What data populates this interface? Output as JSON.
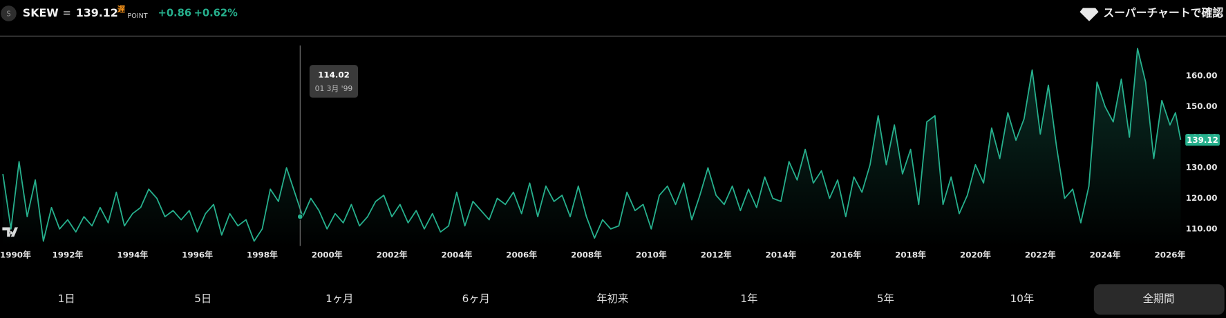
{
  "header": {
    "icon": "S",
    "symbol": "SKEW",
    "separator": "=",
    "price": 139.12,
    "delay": "遅",
    "unit": "POINT",
    "change": "+0.86",
    "change_pct": "+0.62%",
    "link": "スーパーチャートで確認"
  },
  "ranges": [
    "1日",
    "5日",
    "1ヶ月",
    "6ヶ月",
    "年初来",
    "1年",
    "5年",
    "10年",
    "全期間"
  ],
  "chart_data": {
    "type": "line",
    "color": "#26b08d",
    "x": [
      1990,
      1990.25,
      1990.5,
      1990.75,
      1991,
      1991.25,
      1991.5,
      1991.75,
      1992,
      1992.25,
      1992.5,
      1992.75,
      1993,
      1993.25,
      1993.5,
      1993.75,
      1994,
      1994.25,
      1994.5,
      1994.75,
      1995,
      1995.25,
      1995.5,
      1995.75,
      1996,
      1996.25,
      1996.5,
      1996.75,
      1997,
      1997.25,
      1997.5,
      1997.75,
      1998,
      1998.25,
      1998.5,
      1998.75,
      1999,
      1999.25,
      1999.5,
      1999.75,
      2000,
      2000.25,
      2000.5,
      2000.75,
      2001,
      2001.25,
      2001.5,
      2001.75,
      2002,
      2002.25,
      2002.5,
      2002.75,
      2003,
      2003.25,
      2003.5,
      2003.75,
      2004,
      2004.25,
      2004.5,
      2004.75,
      2005,
      2005.25,
      2005.5,
      2005.75,
      2006,
      2006.25,
      2006.5,
      2006.75,
      2007,
      2007.25,
      2007.5,
      2007.75,
      2008,
      2008.25,
      2008.5,
      2008.75,
      2009,
      2009.25,
      2009.5,
      2009.75,
      2010,
      2010.25,
      2010.5,
      2010.75,
      2011,
      2011.25,
      2011.5,
      2011.75,
      2012,
      2012.25,
      2012.5,
      2012.75,
      2013,
      2013.25,
      2013.5,
      2013.75,
      2014,
      2014.25,
      2014.5,
      2014.75,
      2015,
      2015.25,
      2015.5,
      2015.75,
      2016,
      2016.25,
      2016.5,
      2016.75,
      2017,
      2017.25,
      2017.5,
      2017.75,
      2018,
      2018.25,
      2018.5,
      2018.75,
      2019,
      2019.25,
      2019.5,
      2019.75,
      2020,
      2020.25,
      2020.5,
      2020.75,
      2021,
      2021.25,
      2021.5,
      2021.75,
      2022,
      2022.25,
      2022.5,
      2022.75,
      2023,
      2023.25,
      2023.5,
      2023.75,
      2024,
      2024.25,
      2024.5,
      2024.75,
      2025,
      2025.25,
      2025.5,
      2025.75,
      2026,
      2026.17,
      2026.33
    ],
    "values": [
      128,
      110,
      132,
      114,
      126,
      106,
      117,
      110,
      113,
      109,
      114,
      111,
      117,
      112,
      122,
      111,
      115,
      117,
      123,
      120,
      114,
      116,
      113,
      116,
      109,
      115,
      118,
      108,
      115,
      111,
      113,
      106,
      110,
      123,
      119,
      130,
      122,
      114,
      120,
      116,
      110,
      115,
      112,
      118,
      111,
      114,
      119,
      121,
      114,
      118,
      112,
      116,
      110,
      115,
      109,
      111,
      122,
      111,
      119,
      116,
      113,
      120,
      118,
      122,
      115,
      125,
      114,
      124,
      119,
      121,
      114,
      124,
      114,
      107,
      113,
      110,
      111,
      122,
      116,
      118,
      110,
      121,
      124,
      118,
      125,
      113,
      121,
      130,
      121,
      118,
      124,
      116,
      123,
      117,
      127,
      120,
      119,
      132,
      126,
      136,
      125,
      129,
      120,
      126,
      114,
      127,
      122,
      131,
      147,
      131,
      144,
      128,
      136,
      118,
      145,
      147,
      118,
      127,
      115,
      121,
      131,
      125,
      143,
      133,
      148,
      139,
      146,
      162,
      141,
      157,
      137,
      120,
      123,
      112,
      124,
      158,
      150,
      145,
      159,
      140,
      169,
      158,
      133,
      152,
      144,
      148,
      139.12
    ],
    "last_value": 139.12,
    "xlim": [
      1989.96,
      2026.33
    ],
    "ylim": [
      104.41,
      170.0
    ],
    "xticks": [
      {
        "value": 1990,
        "label": "1990年"
      },
      {
        "value": 1992,
        "label": "1992年"
      },
      {
        "value": 1994,
        "label": "1994年"
      },
      {
        "value": 1996,
        "label": "1996年"
      },
      {
        "value": 1998,
        "label": "1998年"
      },
      {
        "value": 2000,
        "label": "2000年"
      },
      {
        "value": 2002,
        "label": "2002年"
      },
      {
        "value": 2004,
        "label": "2004年"
      },
      {
        "value": 2006,
        "label": "2006年"
      },
      {
        "value": 2008,
        "label": "2008年"
      },
      {
        "value": 2010,
        "label": "2010年"
      },
      {
        "value": 2012,
        "label": "2012年"
      },
      {
        "value": 2014,
        "label": "2014年"
      },
      {
        "value": 2016,
        "label": "2016年"
      },
      {
        "value": 2018,
        "label": "2018年"
      },
      {
        "value": 2020,
        "label": "2020年"
      },
      {
        "value": 2022,
        "label": "2022年"
      },
      {
        "value": 2024,
        "label": "2024年"
      },
      {
        "value": 2026,
        "label": "2026年"
      }
    ],
    "yticks": [
      {
        "value": 110,
        "label": "110.00"
      },
      {
        "value": 120,
        "label": "120.00"
      },
      {
        "value": 130,
        "label": "130.00"
      },
      {
        "value": 140,
        "label": "140.00"
      },
      {
        "value": 150,
        "label": "150.00"
      },
      {
        "value": 160,
        "label": "160.00"
      }
    ],
    "crosshair": {
      "x": 1999.17,
      "value": 114.02,
      "label": "01 3月 '99"
    }
  }
}
